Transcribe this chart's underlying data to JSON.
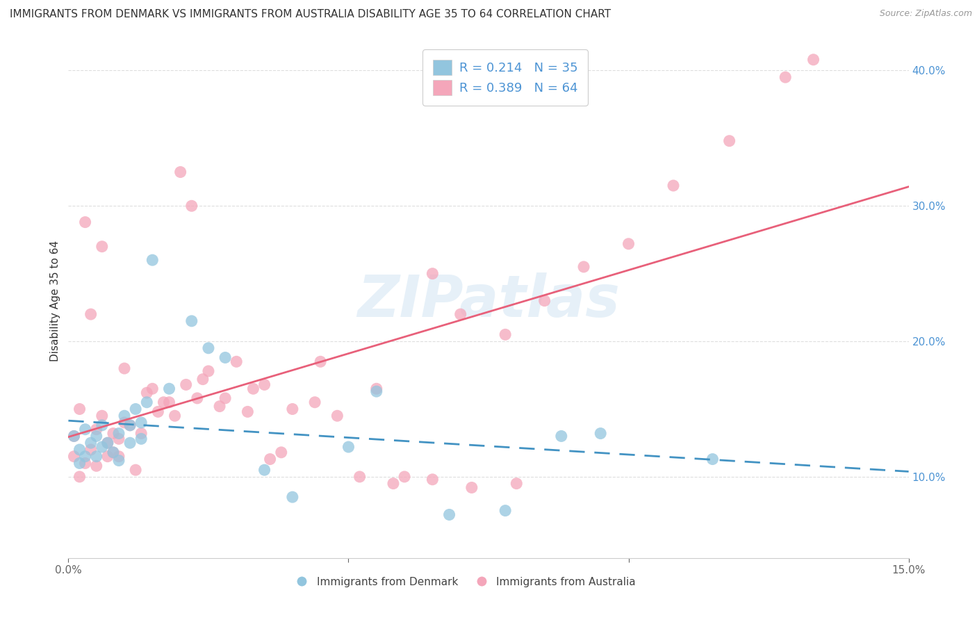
{
  "title": "IMMIGRANTS FROM DENMARK VS IMMIGRANTS FROM AUSTRALIA DISABILITY AGE 35 TO 64 CORRELATION CHART",
  "source": "Source: ZipAtlas.com",
  "ylabel": "Disability Age 35 to 64",
  "xlim": [
    0.0,
    0.15
  ],
  "ylim": [
    0.04,
    0.42
  ],
  "legend_labels": [
    "Immigrants from Denmark",
    "Immigrants from Australia"
  ],
  "denmark_color": "#92c5de",
  "australia_color": "#f4a6ba",
  "denmark_line_color": "#4393c3",
  "australia_line_color": "#e8607a",
  "denmark_R": 0.214,
  "denmark_N": 35,
  "australia_R": 0.389,
  "australia_N": 64,
  "denmark_scatter_x": [
    0.001,
    0.002,
    0.002,
    0.003,
    0.003,
    0.004,
    0.005,
    0.005,
    0.006,
    0.006,
    0.007,
    0.008,
    0.009,
    0.009,
    0.01,
    0.011,
    0.011,
    0.012,
    0.013,
    0.013,
    0.014,
    0.015,
    0.018,
    0.022,
    0.025,
    0.028,
    0.035,
    0.04,
    0.05,
    0.055,
    0.068,
    0.078,
    0.088,
    0.095,
    0.115
  ],
  "denmark_scatter_y": [
    0.13,
    0.12,
    0.11,
    0.135,
    0.115,
    0.125,
    0.13,
    0.115,
    0.138,
    0.122,
    0.125,
    0.118,
    0.132,
    0.112,
    0.145,
    0.138,
    0.125,
    0.15,
    0.14,
    0.128,
    0.155,
    0.26,
    0.165,
    0.215,
    0.195,
    0.188,
    0.105,
    0.085,
    0.122,
    0.163,
    0.072,
    0.075,
    0.13,
    0.132,
    0.113
  ],
  "australia_scatter_x": [
    0.001,
    0.001,
    0.002,
    0.002,
    0.003,
    0.003,
    0.004,
    0.004,
    0.005,
    0.005,
    0.006,
    0.006,
    0.007,
    0.007,
    0.008,
    0.008,
    0.009,
    0.009,
    0.01,
    0.01,
    0.011,
    0.012,
    0.013,
    0.014,
    0.015,
    0.016,
    0.017,
    0.018,
    0.019,
    0.02,
    0.021,
    0.022,
    0.023,
    0.024,
    0.025,
    0.027,
    0.03,
    0.033,
    0.036,
    0.04,
    0.044,
    0.048,
    0.055,
    0.06,
    0.065,
    0.07,
    0.078,
    0.085,
    0.092,
    0.1,
    0.108,
    0.118,
    0.128,
    0.133,
    0.028,
    0.032,
    0.038,
    0.045,
    0.052,
    0.035,
    0.058,
    0.065,
    0.072,
    0.08
  ],
  "australia_scatter_y": [
    0.13,
    0.115,
    0.1,
    0.15,
    0.11,
    0.288,
    0.12,
    0.22,
    0.135,
    0.108,
    0.145,
    0.27,
    0.125,
    0.115,
    0.132,
    0.118,
    0.128,
    0.115,
    0.18,
    0.14,
    0.138,
    0.105,
    0.132,
    0.162,
    0.165,
    0.148,
    0.155,
    0.155,
    0.145,
    0.325,
    0.168,
    0.3,
    0.158,
    0.172,
    0.178,
    0.152,
    0.185,
    0.165,
    0.113,
    0.15,
    0.155,
    0.145,
    0.165,
    0.1,
    0.25,
    0.22,
    0.205,
    0.23,
    0.255,
    0.272,
    0.315,
    0.348,
    0.395,
    0.408,
    0.158,
    0.148,
    0.118,
    0.185,
    0.1,
    0.168,
    0.095,
    0.098,
    0.092,
    0.095
  ],
  "background_color": "#ffffff",
  "grid_color": "#dedede",
  "watermark": "ZIPatlas",
  "title_fontsize": 11,
  "label_fontsize": 11,
  "tick_fontsize": 11
}
